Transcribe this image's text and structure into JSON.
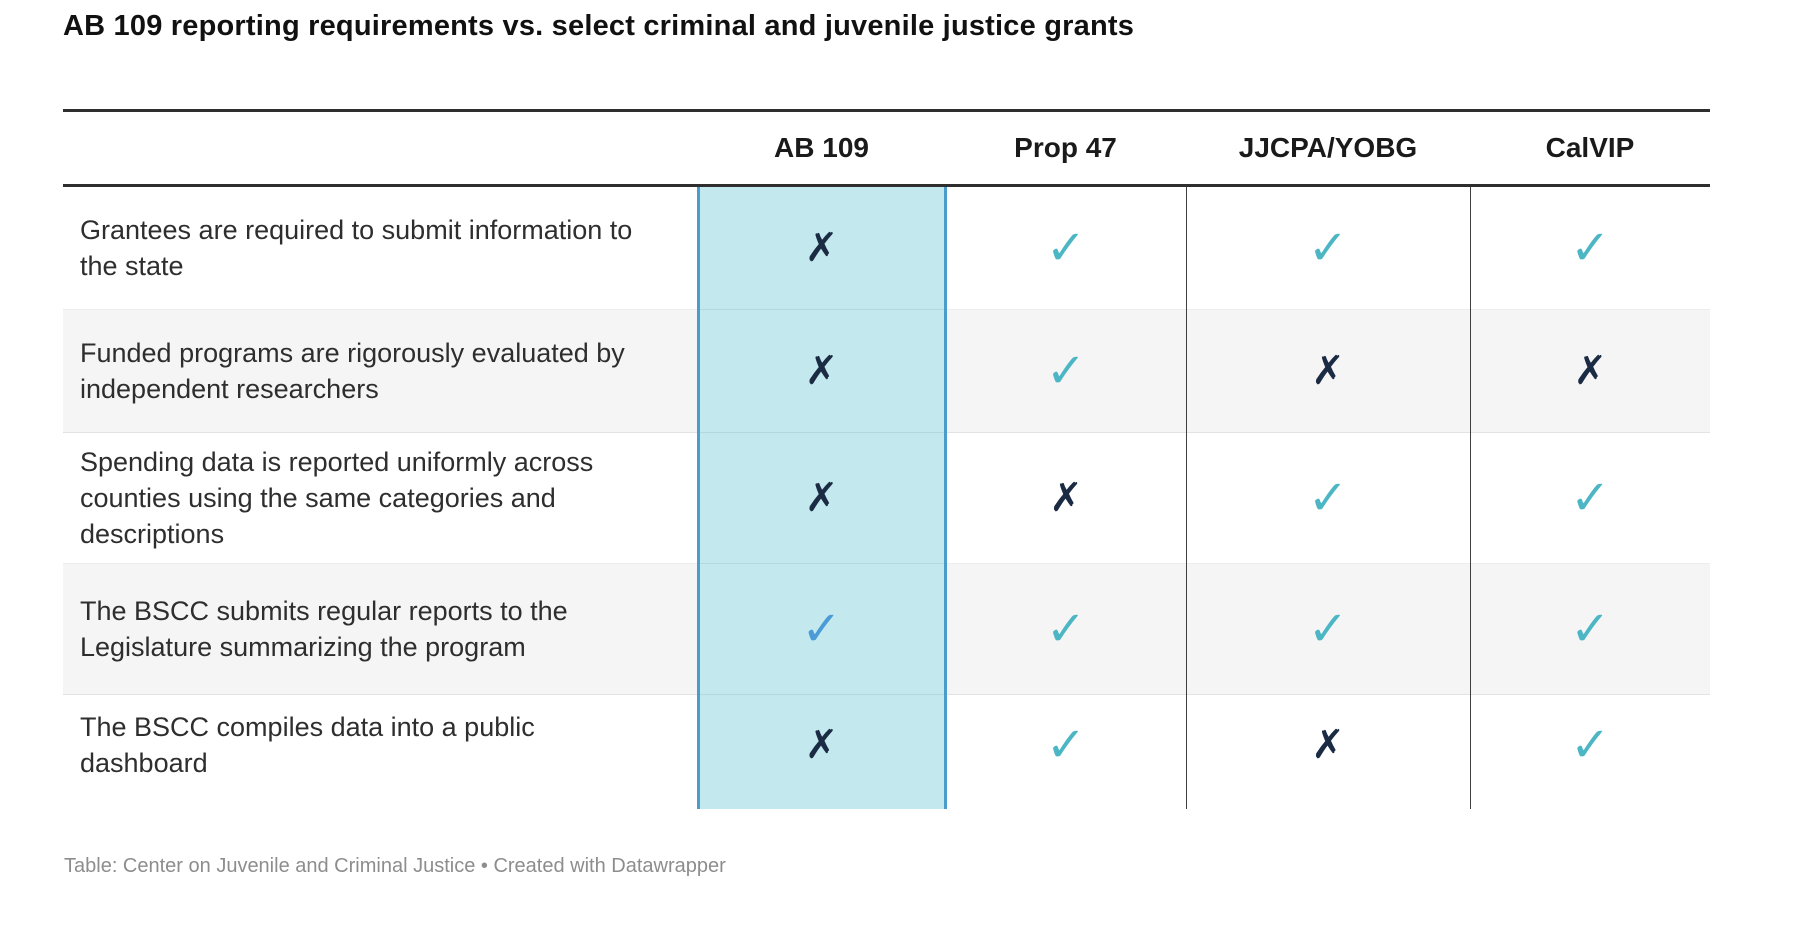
{
  "title": "AB 109 reporting requirements vs. select criminal and juvenile justice grants",
  "chart_data": {
    "type": "table",
    "title": "AB 109 reporting requirements vs. select criminal and juvenile justice grants",
    "columns": [
      "",
      "AB 109",
      "Prop 47",
      "JJCPA/YOBG",
      "CalVIP"
    ],
    "highlighted_column": "AB 109",
    "rows": [
      {
        "label": "Grantees are required to submit information to the state",
        "values": [
          "no",
          "yes",
          "yes",
          "yes"
        ]
      },
      {
        "label": "Funded programs are rigorously evaluated by independent researchers",
        "values": [
          "no",
          "yes",
          "no",
          "no"
        ]
      },
      {
        "label": "Spending data is reported uniformly across counties using the same categories and descriptions",
        "values": [
          "no",
          "no",
          "yes",
          "yes"
        ]
      },
      {
        "label": "The BSCC submits regular reports to the Legislature summarizing the program",
        "values": [
          "yes",
          "yes",
          "yes",
          "yes"
        ]
      },
      {
        "label": "The BSCC compiles data into a public dashboard",
        "values": [
          "no",
          "yes",
          "no",
          "yes"
        ]
      }
    ],
    "symbols": {
      "yes": "✓",
      "no": "✗"
    },
    "legend_position": "none",
    "grid": "zebra-rows"
  },
  "footer": {
    "source": "Table: Center on Juvenile and Criminal Justice",
    "separator": " • ",
    "attribution": "Created with Datawrapper"
  },
  "colors": {
    "title_text": "#111111",
    "body_text": "#2e2e2e",
    "rule": "#2e2e2e",
    "grid_line": "#3f3f3f",
    "row_line": "rgba(0,0,0,0.07)",
    "zebra_row": "#f5f5f5",
    "highlight_bg": "#c3e9ef",
    "highlight_border": "#4a9dca",
    "check_teal": "#4db6c4",
    "check_blue_highlight": "#4b9cd6",
    "cross_navy": "#1b2b44",
    "footer_text": "#8d8d8d"
  }
}
